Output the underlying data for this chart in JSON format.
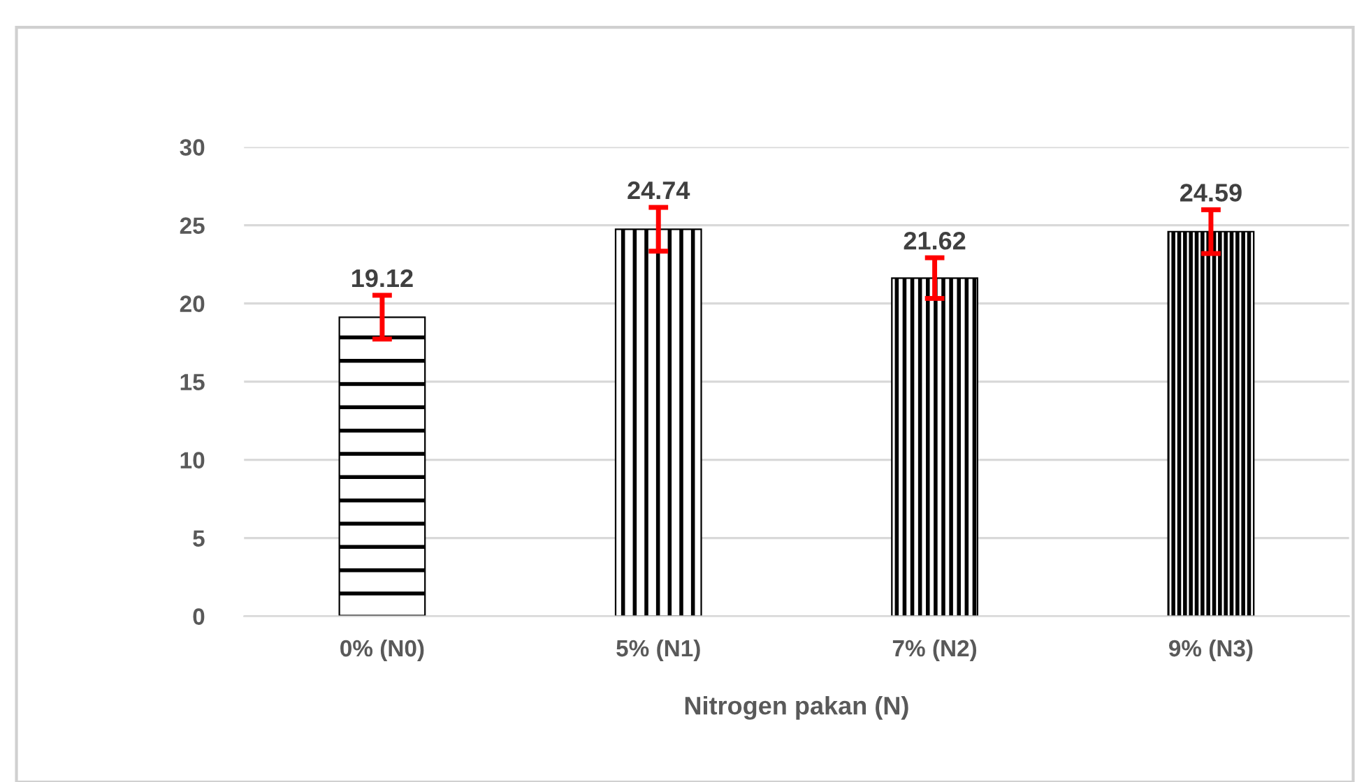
{
  "chart_data": {
    "type": "bar",
    "xlabel": "Nitrogen pakan (N)",
    "categories": [
      "0% (N0)",
      "5% (N1)",
      "7% (N2)",
      "9% (N3)"
    ],
    "values": [
      19.12,
      24.74,
      21.62,
      24.59
    ],
    "errors": [
      1.4,
      1.4,
      1.3,
      1.4
    ],
    "colors": [
      "#000000",
      "#000000",
      "#000000",
      "#000000"
    ],
    "ylim": [
      0,
      30
    ],
    "yticks": [
      0,
      5,
      10,
      15,
      20,
      25,
      30
    ],
    "grid": "y",
    "data_labels": true,
    "legend": false
  }
}
